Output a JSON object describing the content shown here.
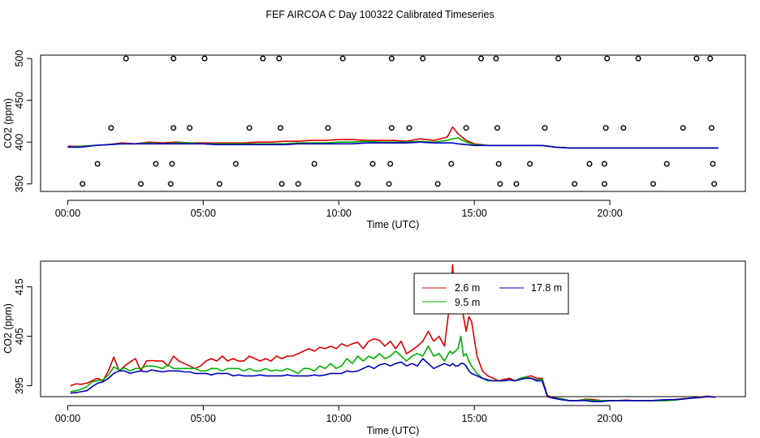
{
  "title": "FEF AIRCOA C  Day 100322  Calibrated Timeseries",
  "colors": {
    "axis": "#000000",
    "s1": "#e00000",
    "s2": "#00b000",
    "s3": "#0000c0"
  },
  "chart_data": [
    {
      "type": "scatter",
      "id": "top",
      "title": "",
      "xlabel": "Time (UTC)",
      "ylabel": "CO2 (ppm)",
      "xlim": [
        -1.0,
        25.0
      ],
      "ylim": [
        341.0,
        504.0
      ],
      "xticks": [
        0,
        5,
        10,
        15,
        20
      ],
      "xtick_labels": [
        "00:00",
        "05:00",
        "10:00",
        "15:00",
        "20:00"
      ],
      "yticks": [
        350,
        400,
        450,
        500
      ],
      "ytick_labels": [
        "350",
        "400",
        "450",
        "500"
      ],
      "markers": {
        "x": [
          2.15,
          3.9,
          5.05,
          7.2,
          7.8,
          10.15,
          11.95,
          13.1,
          15.25,
          15.8,
          18.1,
          19.9,
          21.05,
          23.2,
          23.7,
          1.6,
          3.9,
          4.5,
          6.7,
          7.85,
          9.6,
          11.95,
          12.6,
          14.7,
          15.85,
          17.6,
          19.85,
          20.5,
          22.7,
          23.75,
          1.1,
          3.25,
          3.85,
          6.2,
          9.1,
          11.25,
          11.9,
          14.15,
          15.9,
          17.05,
          19.25,
          19.8,
          22.1,
          23.8,
          0.55,
          2.7,
          3.8,
          5.6,
          7.9,
          8.5,
          10.7,
          11.85,
          13.65,
          15.95,
          16.55,
          18.7,
          19.8,
          21.6,
          23.85
        ],
        "y": [
          500,
          500,
          500,
          500,
          500,
          500,
          500,
          500,
          500,
          500,
          500,
          500,
          500,
          500,
          500,
          417,
          417,
          417,
          417,
          417,
          417,
          417,
          417,
          417,
          417,
          417,
          417,
          417,
          417,
          417,
          374,
          374,
          374,
          374,
          374,
          374,
          374,
          374,
          374,
          374,
          374,
          374,
          374,
          374,
          350,
          350,
          350,
          350,
          350,
          350,
          350,
          350,
          350,
          350,
          350,
          350,
          350,
          350,
          350
        ]
      },
      "x": [
        0.0,
        0.5,
        1.0,
        1.5,
        2.0,
        2.5,
        3.0,
        3.5,
        4.0,
        4.5,
        5.0,
        5.5,
        6.0,
        6.5,
        7.0,
        7.5,
        8.0,
        8.5,
        9.0,
        9.5,
        10.0,
        10.5,
        11.0,
        11.5,
        12.0,
        12.5,
        13.0,
        13.5,
        14.0,
        14.2,
        14.4,
        14.7,
        15.0,
        15.5,
        16.0,
        16.5,
        17.0,
        17.5,
        18.0,
        18.5,
        19.0,
        19.5,
        20.0,
        20.5,
        21.0,
        21.5,
        22.0,
        22.5,
        23.0,
        23.5,
        24.0
      ],
      "series": [
        {
          "name": "2.6 m",
          "color": "#e00000",
          "values": [
            395,
            395,
            396,
            397,
            399,
            398,
            400,
            399,
            400,
            399,
            399,
            399,
            399,
            399,
            400,
            400,
            401,
            401,
            402,
            402,
            403,
            403,
            402,
            402,
            402,
            401,
            404,
            402,
            406,
            418,
            410,
            402,
            398,
            396,
            396,
            396,
            396,
            396,
            394,
            393,
            393,
            393,
            393,
            393,
            393,
            393,
            393,
            393,
            393,
            393,
            393
          ]
        },
        {
          "name": "9.5 m",
          "color": "#00b000",
          "values": [
            394,
            395,
            396,
            397,
            398,
            398,
            399,
            398,
            399,
            399,
            398,
            398,
            398,
            398,
            398,
            398,
            398,
            399,
            399,
            399,
            400,
            400,
            401,
            400,
            400,
            400,
            401,
            400,
            402,
            404,
            405,
            400,
            397,
            396,
            396,
            396,
            396,
            396,
            394,
            393,
            393,
            393,
            393,
            393,
            393,
            393,
            393,
            393,
            393,
            393,
            393
          ]
        },
        {
          "name": "17.8 m",
          "color": "#0000c0",
          "values": [
            394,
            394,
            396,
            397,
            398,
            398,
            398,
            398,
            398,
            398,
            398,
            397,
            397,
            397,
            397,
            397,
            397,
            398,
            398,
            398,
            398,
            398,
            399,
            399,
            399,
            399,
            400,
            399,
            399,
            399,
            398,
            397,
            396,
            396,
            396,
            396,
            396,
            396,
            394,
            393,
            393,
            393,
            393,
            393,
            393,
            393,
            393,
            393,
            393,
            393,
            393
          ]
        }
      ]
    },
    {
      "type": "line",
      "id": "bottom",
      "title": "",
      "xlabel": "Time (UTC)",
      "ylabel": "CO2 (ppm)",
      "xlim": [
        -1.0,
        25.0
      ],
      "ylim": [
        392.8,
        420.2
      ],
      "xticks": [
        0,
        5,
        10,
        15,
        20
      ],
      "xtick_labels": [
        "00:00",
        "05:00",
        "10:00",
        "15:00",
        "20:00"
      ],
      "yticks": [
        395,
        405,
        415
      ],
      "ytick_labels": [
        "395",
        "405",
        "415"
      ],
      "legend": {
        "placement": "top-center",
        "entries": [
          "2.6 m",
          "9.5 m",
          "17.8 m"
        ]
      },
      "x": [
        0.1,
        0.3,
        0.5,
        0.7,
        0.9,
        1.1,
        1.3,
        1.5,
        1.7,
        1.9,
        2.1,
        2.3,
        2.5,
        2.7,
        2.9,
        3.1,
        3.3,
        3.5,
        3.7,
        3.9,
        4.1,
        4.3,
        4.5,
        4.7,
        4.9,
        5.1,
        5.3,
        5.5,
        5.7,
        5.9,
        6.1,
        6.3,
        6.5,
        6.7,
        6.9,
        7.1,
        7.3,
        7.5,
        7.7,
        7.9,
        8.1,
        8.3,
        8.5,
        8.7,
        8.9,
        9.1,
        9.3,
        9.5,
        9.7,
        9.9,
        10.1,
        10.3,
        10.5,
        10.7,
        10.9,
        11.1,
        11.3,
        11.5,
        11.7,
        11.9,
        12.1,
        12.3,
        12.5,
        12.7,
        12.9,
        13.1,
        13.3,
        13.5,
        13.7,
        13.9,
        14.1,
        14.2,
        14.3,
        14.4,
        14.5,
        14.6,
        14.7,
        14.8,
        14.9,
        15.1,
        15.3,
        15.5,
        15.7,
        15.9,
        16.1,
        16.3,
        16.5,
        16.7,
        16.9,
        17.1,
        17.3,
        17.5,
        17.7,
        17.9,
        18.2,
        18.5,
        18.8,
        19.1,
        19.4,
        19.7,
        20.0,
        20.3,
        20.6,
        20.9,
        21.2,
        21.5,
        21.8,
        22.1,
        22.4,
        22.7,
        23.0,
        23.3,
        23.6,
        23.9
      ],
      "series": [
        {
          "name": "2.6 m",
          "color": "#e00000",
          "values": [
            395.0,
            395.4,
            395.3,
            395.5,
            396.0,
            396.5,
            396.0,
            398.0,
            400.8,
            398.0,
            399.0,
            399.8,
            400.5,
            398.0,
            400.0,
            400.1,
            400.0,
            400.0,
            399.0,
            401.0,
            400.0,
            399.5,
            399.0,
            398.5,
            399.0,
            400.0,
            400.5,
            400.0,
            401.0,
            400.0,
            400.5,
            400.0,
            400.0,
            401.0,
            400.5,
            400.0,
            400.5,
            400.0,
            401.0,
            400.5,
            401.0,
            401.0,
            401.5,
            402.0,
            402.5,
            402.0,
            402.8,
            402.5,
            403.0,
            402.5,
            403.5,
            403.0,
            403.5,
            403.8,
            402.5,
            404.0,
            404.5,
            404.2,
            403.0,
            404.0,
            402.5,
            404.0,
            401.5,
            402.2,
            403.0,
            404.0,
            406.0,
            404.0,
            405.0,
            403.0,
            412.0,
            419.5,
            411.0,
            410.0,
            412.0,
            409.0,
            406.0,
            409.0,
            408.0,
            401.0,
            398.0,
            397.0,
            396.5,
            396.0,
            396.3,
            396.5,
            396.0,
            396.5,
            396.8,
            397.0,
            396.5,
            396.5,
            393.0,
            392.6,
            392.4,
            392.0,
            392.0,
            392.3,
            392.2,
            392.0,
            392.0,
            392.0,
            392.1,
            392.0,
            392.0,
            392.0,
            392.0,
            392.0,
            392.2,
            392.4,
            392.5,
            392.7,
            392.9,
            392.7
          ]
        },
        {
          "name": "9.5 m",
          "color": "#00b000",
          "values": [
            393.8,
            394.0,
            394.3,
            394.8,
            395.8,
            396.0,
            396.2,
            397.2,
            398.8,
            398.2,
            398.6,
            398.0,
            398.5,
            398.5,
            399.0,
            399.0,
            398.8,
            398.5,
            399.2,
            398.5,
            398.5,
            398.5,
            398.5,
            398.5,
            398.0,
            398.0,
            398.5,
            398.5,
            398.0,
            398.5,
            398.5,
            398.5,
            398.0,
            398.5,
            398.0,
            398.0,
            398.5,
            398.0,
            398.2,
            398.0,
            398.5,
            398.0,
            397.5,
            398.5,
            398.5,
            398.0,
            399.0,
            398.5,
            399.5,
            398.5,
            399.0,
            400.5,
            399.5,
            401.0,
            400.0,
            401.0,
            400.5,
            401.5,
            400.5,
            401.0,
            402.0,
            401.0,
            400.0,
            401.0,
            401.5,
            401.0,
            403.0,
            401.0,
            401.5,
            400.0,
            402.0,
            401.5,
            402.0,
            402.5,
            405.0,
            401.0,
            401.5,
            400.0,
            399.0,
            397.5,
            396.5,
            396.0,
            396.0,
            396.0,
            396.0,
            396.2,
            396.0,
            396.5,
            396.8,
            396.5,
            396.2,
            396.3,
            392.8,
            392.5,
            392.4,
            392.0,
            392.0,
            392.2,
            392.0,
            392.0,
            392.0,
            392.0,
            392.0,
            392.0,
            392.0,
            392.0,
            392.0,
            392.0,
            392.1,
            392.3,
            392.5,
            392.6,
            392.8,
            392.7
          ]
        },
        {
          "name": "17.8 m",
          "color": "#0000c0",
          "values": [
            393.5,
            393.6,
            393.8,
            394.0,
            394.8,
            395.5,
            395.8,
            396.5,
            397.5,
            398.0,
            398.0,
            397.5,
            397.8,
            398.0,
            397.8,
            398.2,
            398.0,
            397.8,
            398.0,
            398.0,
            398.0,
            397.8,
            397.8,
            397.5,
            397.5,
            397.5,
            397.2,
            397.5,
            397.5,
            397.5,
            397.0,
            397.2,
            397.0,
            397.0,
            397.0,
            397.2,
            397.0,
            397.0,
            397.0,
            397.0,
            397.2,
            397.0,
            397.0,
            397.0,
            397.0,
            397.2,
            397.0,
            397.2,
            397.5,
            397.5,
            397.5,
            398.0,
            397.8,
            398.0,
            398.5,
            399.0,
            398.5,
            399.2,
            399.5,
            399.0,
            399.5,
            399.8,
            399.0,
            399.5,
            399.0,
            400.5,
            399.5,
            398.5,
            399.0,
            399.5,
            399.0,
            399.5,
            399.0,
            399.0,
            399.5,
            399.5,
            399.0,
            398.0,
            397.5,
            397.0,
            396.5,
            396.2,
            396.0,
            396.0,
            396.0,
            396.2,
            396.0,
            396.3,
            396.5,
            396.5,
            396.0,
            396.0,
            392.8,
            392.5,
            392.2,
            392.0,
            392.0,
            392.0,
            391.8,
            391.8,
            392.0,
            392.0,
            392.0,
            392.0,
            392.0,
            392.0,
            392.1,
            392.2,
            392.2,
            392.3,
            392.5,
            392.6,
            392.8,
            392.7
          ]
        }
      ]
    }
  ]
}
